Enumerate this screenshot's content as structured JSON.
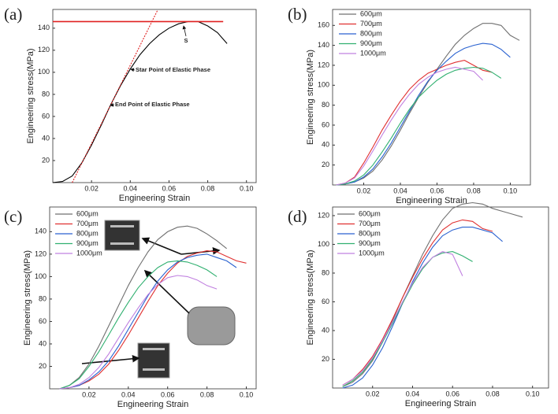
{
  "chart_data": [
    {
      "type": "line",
      "panel_label": "(a)",
      "xlabel": "Engineering Strain",
      "ylabel": "Engineering stress(MPa)",
      "xlim": [
        0,
        0.105
      ],
      "ylim": [
        0,
        157
      ],
      "xticks": [
        0.02,
        0.04,
        0.06,
        0.08,
        {
          "value": 0.1,
          "label": "0.10"
        }
      ],
      "yticks": [
        20,
        40,
        60,
        80,
        100,
        120,
        140
      ],
      "annotations": [
        "S",
        "Star Point of Elastic Phase",
        "End Point of Elastic Phase"
      ],
      "series": [
        {
          "color": "#000000",
          "style": "solid",
          "x": [
            0,
            0.005,
            0.01,
            0.015,
            0.02,
            0.025,
            0.03,
            0.035,
            0.04,
            0.045,
            0.05,
            0.055,
            0.06,
            0.065,
            0.07,
            0.075,
            0.08,
            0.085,
            0.09
          ],
          "values": [
            0,
            1,
            6,
            18,
            34,
            52,
            71,
            88,
            103,
            116,
            126,
            134,
            140,
            144,
            146,
            146,
            142,
            136,
            126
          ]
        },
        {
          "color": "#e02020",
          "style": "solid",
          "x": [
            0,
            0.088
          ],
          "values": [
            146,
            146
          ]
        },
        {
          "color": "#e02020",
          "style": "dashed",
          "x": [
            0.01,
            0.054
          ],
          "values": [
            0,
            156
          ]
        }
      ]
    },
    {
      "type": "line",
      "panel_label": "(b)",
      "xlabel": "Engineering Strain",
      "ylabel": "Engineering stress(MPa)",
      "xlim": [
        0.003,
        0.111
      ],
      "ylim": [
        0,
        176
      ],
      "xticks": [
        0.02,
        0.04,
        0.06,
        0.08,
        {
          "value": 0.1,
          "label": "0.10"
        }
      ],
      "yticks": [
        20,
        40,
        60,
        80,
        100,
        120,
        140,
        160
      ],
      "x": [
        0.005,
        0.01,
        0.015,
        0.02,
        0.025,
        0.03,
        0.035,
        0.04,
        0.045,
        0.05,
        0.055,
        0.06,
        0.065,
        0.07,
        0.075,
        0.08,
        0.085,
        0.09,
        0.095,
        0.1,
        0.105
      ],
      "series": [
        {
          "name": "600μm",
          "color": "#707070",
          "values": [
            0,
            1,
            3,
            7,
            14,
            25,
            39,
            55,
            72,
            88,
            103,
            116,
            129,
            141,
            150,
            157,
            162,
            162,
            160,
            150,
            145
          ]
        },
        {
          "name": "700μm",
          "color": "#e03030",
          "values": [
            0,
            2,
            8,
            22,
            38,
            55,
            70,
            84,
            96,
            105,
            112,
            116,
            120,
            123,
            125,
            120,
            115,
            113,
            null,
            null,
            null
          ]
        },
        {
          "name": "800μm",
          "color": "#2a62d0",
          "values": [
            0,
            1,
            3,
            8,
            16,
            28,
            42,
            58,
            74,
            90,
            104,
            115,
            124,
            132,
            137,
            140,
            142,
            141,
            136,
            128,
            null
          ]
        },
        {
          "name": "900μm",
          "color": "#30b070",
          "values": [
            0,
            1,
            4,
            10,
            20,
            33,
            47,
            62,
            76,
            88,
            97,
            105,
            111,
            115,
            117,
            118,
            117,
            113,
            107,
            null,
            null
          ]
        },
        {
          "name": "1000μm",
          "color": "#c080e0",
          "values": [
            0,
            2,
            7,
            19,
            34,
            50,
            65,
            79,
            91,
            101,
            108,
            113,
            116,
            118,
            116,
            114,
            105,
            null,
            null,
            null,
            null
          ]
        }
      ]
    },
    {
      "type": "line",
      "panel_label": "(c)",
      "xlabel": "Engineering Strain",
      "ylabel": "Engineering stress(MPa)",
      "xlim": [
        0,
        0.105
      ],
      "ylim": [
        0,
        162
      ],
      "xticks": [
        0.02,
        0.04,
        0.06,
        0.08,
        {
          "value": 0.1,
          "label": "0.10"
        }
      ],
      "yticks": [
        20,
        40,
        60,
        80,
        100,
        120,
        140
      ],
      "x": [
        0.005,
        0.01,
        0.015,
        0.02,
        0.025,
        0.03,
        0.035,
        0.04,
        0.045,
        0.05,
        0.055,
        0.06,
        0.065,
        0.07,
        0.075,
        0.08,
        0.085,
        0.09,
        0.095,
        0.1
      ],
      "series": [
        {
          "name": "600μm",
          "color": "#707070",
          "values": [
            0,
            3,
            10,
            22,
            38,
            56,
            74,
            92,
            108,
            122,
            133,
            140,
            144,
            145,
            143,
            138,
            132,
            125,
            null,
            null
          ]
        },
        {
          "name": "700μm",
          "color": "#e03030",
          "values": [
            0,
            1,
            3,
            7,
            13,
            22,
            34,
            48,
            63,
            78,
            92,
            103,
            112,
            118,
            121,
            123,
            122,
            118,
            114,
            112
          ]
        },
        {
          "name": "800μm",
          "color": "#2a62d0",
          "values": [
            0,
            1,
            3,
            8,
            15,
            25,
            38,
            53,
            68,
            83,
            96,
            106,
            113,
            117,
            119,
            120,
            117,
            114,
            108,
            null
          ]
        },
        {
          "name": "900μm",
          "color": "#30b070",
          "values": [
            0,
            3,
            9,
            20,
            33,
            48,
            63,
            77,
            90,
            100,
            108,
            113,
            114,
            113,
            110,
            106,
            100,
            null,
            null,
            null
          ]
        },
        {
          "name": "1000μm",
          "color": "#c080e0",
          "values": [
            0,
            1,
            4,
            10,
            19,
            31,
            45,
            59,
            72,
            84,
            93,
            99,
            101,
            100,
            97,
            92,
            89,
            null,
            null,
            null
          ]
        }
      ]
    },
    {
      "type": "line",
      "panel_label": "(d)",
      "xlabel": "Engineering Strain",
      "ylabel": "Engineering stress(MPa)",
      "xlim": [
        0,
        0.108
      ],
      "ylim": [
        0,
        126
      ],
      "xticks": [
        0.02,
        0.04,
        0.06,
        0.08,
        {
          "value": 0.1,
          "label": "0.10"
        }
      ],
      "yticks": [
        20,
        40,
        60,
        80,
        100,
        120
      ],
      "x": [
        0.005,
        0.01,
        0.015,
        0.02,
        0.025,
        0.03,
        0.035,
        0.04,
        0.045,
        0.05,
        0.055,
        0.06,
        0.065,
        0.07,
        0.075,
        0.08,
        0.085,
        0.09,
        0.095
      ],
      "series": [
        {
          "name": "600μm",
          "color": "#707070",
          "values": [
            1,
            4,
            10,
            19,
            32,
            47,
            63,
            78,
            93,
            106,
            117,
            125,
            128,
            129,
            128,
            125,
            123,
            121,
            119
          ]
        },
        {
          "name": "700μm",
          "color": "#e03030",
          "values": [
            2,
            6,
            13,
            22,
            34,
            48,
            63,
            77,
            90,
            101,
            110,
            115,
            117,
            116,
            111,
            109,
            null,
            null,
            null
          ]
        },
        {
          "name": "800μm",
          "color": "#2a62d0",
          "values": [
            0,
            2,
            7,
            16,
            28,
            43,
            59,
            74,
            87,
            98,
            106,
            110,
            112,
            112,
            110,
            108,
            102,
            null,
            null
          ]
        },
        {
          "name": "900μm",
          "color": "#30b070",
          "values": [
            1,
            5,
            11,
            20,
            32,
            45,
            59,
            72,
            83,
            91,
            94,
            95,
            92,
            88,
            null,
            null,
            null,
            null,
            null
          ]
        },
        {
          "name": "1000μm",
          "color": "#c080e0",
          "values": [
            2,
            6,
            12,
            21,
            33,
            46,
            60,
            73,
            84,
            91,
            95,
            93,
            78,
            null,
            null,
            null,
            null,
            null,
            null
          ]
        }
      ]
    }
  ]
}
